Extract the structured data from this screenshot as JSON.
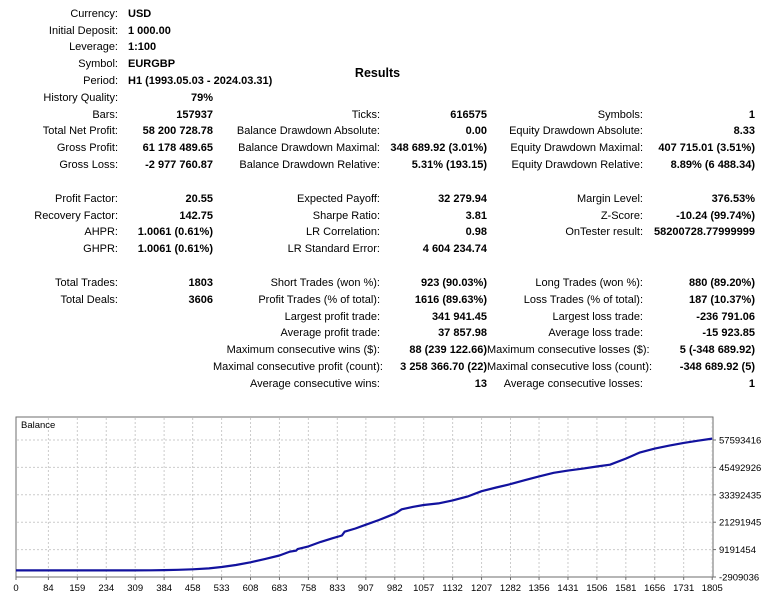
{
  "title": "Results",
  "stats": {
    "sections": [
      {
        "rows": [
          [
            "Currency:",
            "USD",
            "",
            "",
            "",
            ""
          ],
          [
            "Initial Deposit:",
            "1 000.00",
            "",
            "",
            "",
            ""
          ],
          [
            "Leverage:",
            "1:100",
            "",
            "",
            "",
            ""
          ],
          [
            "Symbol:",
            "EURGBP",
            "",
            "",
            "",
            ""
          ],
          [
            "Period:",
            "H1 (1993.05.03 - 2024.03.31)",
            "",
            "",
            "",
            ""
          ],
          [
            "History Quality:",
            "79%",
            "",
            "",
            "",
            ""
          ],
          [
            "Bars:",
            "157937",
            "Ticks:",
            "616575",
            "Symbols:",
            "1"
          ],
          [
            "Total Net Profit:",
            "58 200 728.78",
            "Balance Drawdown Absolute:",
            "0.00",
            "Equity Drawdown Absolute:",
            "8.33"
          ],
          [
            "Gross Profit:",
            "61 178 489.65",
            "Balance Drawdown Maximal:",
            "348 689.92 (3.01%)",
            "Equity Drawdown Maximal:",
            "407 715.01 (3.51%)"
          ],
          [
            "Gross Loss:",
            "-2 977 760.87",
            "Balance Drawdown Relative:",
            "5.31% (193.15)",
            "Equity Drawdown Relative:",
            "8.89% (6 488.34)"
          ]
        ]
      },
      {
        "rows": [
          [
            "Profit Factor:",
            "20.55",
            "Expected Payoff:",
            "32 279.94",
            "Margin Level:",
            "376.53%"
          ],
          [
            "Recovery Factor:",
            "142.75",
            "Sharpe Ratio:",
            "3.81",
            "Z-Score:",
            "-10.24 (99.74%)"
          ],
          [
            "AHPR:",
            "1.0061 (0.61%)",
            "LR Correlation:",
            "0.98",
            "OnTester result:",
            "58200728.77999999"
          ],
          [
            "GHPR:",
            "1.0061 (0.61%)",
            "LR Standard Error:",
            "4 604 234.74",
            "",
            ""
          ]
        ]
      },
      {
        "rows": [
          [
            "Total Trades:",
            "1803",
            "Short Trades (won %):",
            "923 (90.03%)",
            "Long Trades (won %):",
            "880 (89.20%)"
          ],
          [
            "Total Deals:",
            "3606",
            "Profit Trades (% of total):",
            "1616 (89.63%)",
            "Loss Trades (% of total):",
            "187 (10.37%)"
          ],
          [
            "",
            "",
            "Largest profit trade:",
            "341 941.45",
            "Largest loss trade:",
            "-236 791.06"
          ],
          [
            "",
            "",
            "Average profit trade:",
            "37 857.98",
            "Average loss trade:",
            "-15 923.85"
          ],
          [
            "",
            "",
            "Maximum consecutive wins ($):",
            "88 (239 122.66)",
            "Maximum consecutive losses ($):",
            "5 (-348 689.92)"
          ],
          [
            "",
            "",
            "Maximal consecutive profit (count):",
            "3 258 366.70 (22)",
            "Maximal consecutive loss (count):",
            "-348 689.92 (5)"
          ],
          [
            "",
            "",
            "Average consecutive wins:",
            "13",
            "Average consecutive losses:",
            "1"
          ]
        ]
      }
    ]
  },
  "chart_data": {
    "type": "line",
    "title": "Balance",
    "x_ticks": [
      0,
      84,
      159,
      234,
      309,
      384,
      458,
      533,
      608,
      683,
      758,
      833,
      907,
      982,
      1057,
      1132,
      1207,
      1282,
      1356,
      1431,
      1506,
      1581,
      1656,
      1731,
      1805
    ],
    "y_ticks": [
      57593416,
      45492926,
      33392435,
      21291945,
      9191454,
      -2909036
    ],
    "x_range": [
      0,
      1807
    ],
    "grid": true,
    "legend_position": "none",
    "colors": {
      "line": "#12129e",
      "grid": "#cbcbcb",
      "border": "#6e6e6e",
      "axis_text": "#000000"
    },
    "series": [
      {
        "name": "Balance",
        "points": [
          [
            0,
            1000
          ],
          [
            50,
            1000
          ],
          [
            100,
            1000
          ],
          [
            150,
            1000
          ],
          [
            200,
            1000
          ],
          [
            250,
            1000
          ],
          [
            300,
            1000
          ],
          [
            350,
            30000
          ],
          [
            384,
            120000
          ],
          [
            420,
            250000
          ],
          [
            458,
            480000
          ],
          [
            500,
            900000
          ],
          [
            533,
            1500000
          ],
          [
            570,
            2400000
          ],
          [
            608,
            3600000
          ],
          [
            645,
            5000000
          ],
          [
            683,
            6600000
          ],
          [
            710,
            8300000
          ],
          [
            726,
            8700000
          ],
          [
            730,
            9400000
          ],
          [
            758,
            10600000
          ],
          [
            790,
            12600000
          ],
          [
            820,
            14200000
          ],
          [
            845,
            15400000
          ],
          [
            852,
            17100000
          ],
          [
            880,
            18500000
          ],
          [
            907,
            20200000
          ],
          [
            940,
            22200000
          ],
          [
            965,
            23900000
          ],
          [
            985,
            25300000
          ],
          [
            1000,
            27000000
          ],
          [
            1030,
            28100000
          ],
          [
            1057,
            28900000
          ],
          [
            1095,
            29600000
          ],
          [
            1132,
            30900000
          ],
          [
            1170,
            32600000
          ],
          [
            1207,
            35000000
          ],
          [
            1245,
            36600000
          ],
          [
            1282,
            38100000
          ],
          [
            1320,
            39900000
          ],
          [
            1356,
            41500000
          ],
          [
            1394,
            43100000
          ],
          [
            1431,
            44100000
          ],
          [
            1468,
            44900000
          ],
          [
            1506,
            45900000
          ],
          [
            1540,
            46700000
          ],
          [
            1581,
            49400000
          ],
          [
            1618,
            52100000
          ],
          [
            1656,
            53800000
          ],
          [
            1694,
            55100000
          ],
          [
            1731,
            56300000
          ],
          [
            1768,
            57300000
          ],
          [
            1805,
            58200729
          ]
        ]
      }
    ]
  }
}
